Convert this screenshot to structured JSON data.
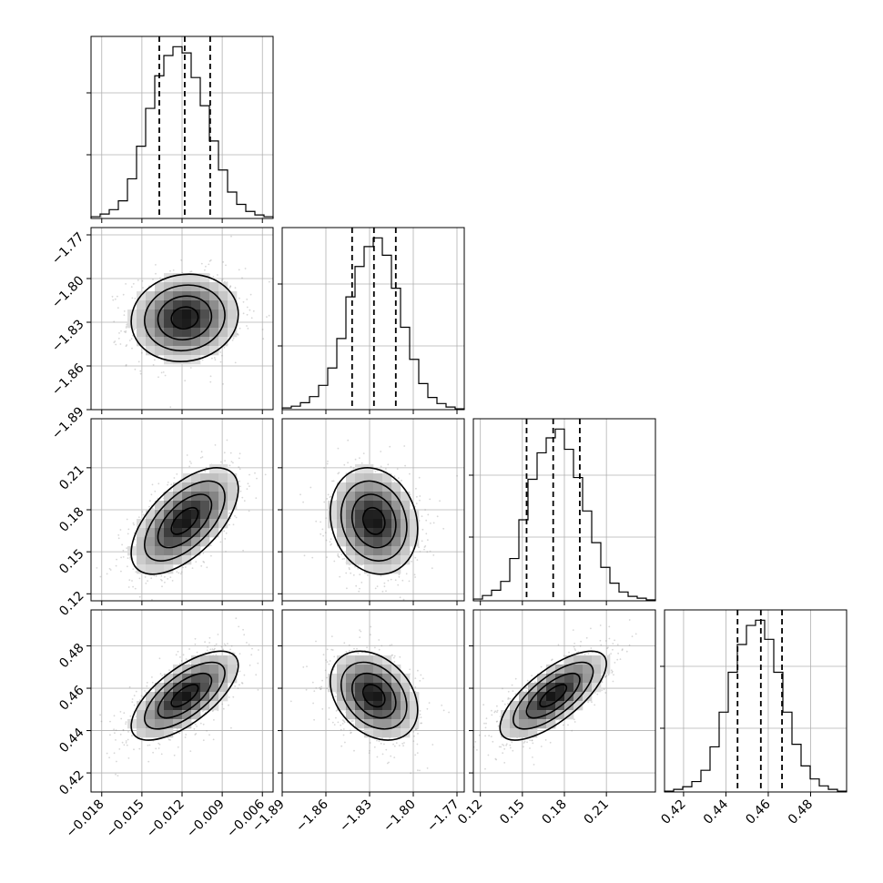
{
  "chart_data": {
    "type": "corner",
    "parameters": [
      {
        "range": [
          -0.0188,
          -0.0052
        ],
        "ticks": [
          -0.018,
          -0.015,
          -0.012,
          -0.009,
          -0.006
        ],
        "tick_labels": [
          "−0.018",
          "−0.015",
          "−0.012",
          "−0.009",
          "−0.006"
        ],
        "quantiles": [
          -0.0137,
          -0.0118,
          -0.0099
        ],
        "median": -0.0118,
        "sigma": 0.002
      },
      {
        "range": [
          -1.89,
          -1.765
        ],
        "ticks": [
          -1.89,
          -1.86,
          -1.83,
          -1.8,
          -1.77
        ],
        "tick_labels": [
          "−1.89",
          "−1.86",
          "−1.83",
          "−1.80",
          "−1.77"
        ],
        "quantiles": [
          -1.842,
          -1.827,
          -1.812
        ],
        "median": -1.827,
        "sigma": 0.015
      },
      {
        "range": [
          0.115,
          0.245
        ],
        "ticks": [
          0.12,
          0.15,
          0.18,
          0.21
        ],
        "tick_labels": [
          "0.12",
          "0.15",
          "0.18",
          "0.21"
        ],
        "quantiles": [
          0.153,
          0.172,
          0.191
        ],
        "median": 0.172,
        "sigma": 0.019
      },
      {
        "range": [
          0.411,
          0.497
        ],
        "ticks": [
          0.42,
          0.44,
          0.46,
          0.48
        ],
        "tick_labels": [
          "0.42",
          "0.44",
          "0.46",
          "0.48"
        ],
        "quantiles": [
          0.4455,
          0.4565,
          0.4665
        ],
        "median": 0.4565,
        "sigma": 0.0105
      }
    ],
    "histograms": [
      {
        "param": 0,
        "bin_edges": [
          -0.0188,
          -0.01812,
          -0.01744,
          -0.01676,
          -0.01608,
          -0.0154,
          -0.01472,
          -0.01404,
          -0.01336,
          -0.01268,
          -0.012,
          -0.01132,
          -0.01064,
          -0.00996,
          -0.00928,
          -0.0086,
          -0.00792,
          -0.00724,
          -0.00656,
          -0.00588,
          -0.0052
        ],
        "counts": [
          2,
          5,
          10,
          20,
          45,
          82,
          125,
          162,
          185,
          195,
          188,
          160,
          128,
          88,
          55,
          30,
          16,
          8,
          4,
          2
        ]
      },
      {
        "param": 1,
        "bin_edges": [
          -1.89,
          -1.88375,
          -1.8775,
          -1.87125,
          -1.865,
          -1.85875,
          -1.8525,
          -1.84625,
          -1.84,
          -1.83375,
          -1.8275,
          -1.82125,
          -1.815,
          -1.80875,
          -1.8025,
          -1.79625,
          -1.79,
          -1.78375,
          -1.7775,
          -1.77125,
          -1.765
        ],
        "counts": [
          2,
          4,
          8,
          15,
          28,
          48,
          82,
          130,
          165,
          188,
          198,
          178,
          140,
          95,
          58,
          30,
          14,
          7,
          3,
          1
        ]
      },
      {
        "param": 2,
        "bin_edges": [
          0.115,
          0.1215,
          0.128,
          0.1345,
          0.141,
          0.1475,
          0.154,
          0.1605,
          0.167,
          0.1735,
          0.18,
          0.1865,
          0.193,
          0.1995,
          0.206,
          0.2125,
          0.219,
          0.2255,
          0.232,
          0.2385,
          0.245
        ],
        "counts": [
          2,
          6,
          12,
          22,
          48,
          92,
          138,
          168,
          185,
          195,
          172,
          140,
          102,
          66,
          38,
          20,
          10,
          5,
          3,
          1
        ]
      },
      {
        "param": 3,
        "bin_edges": [
          0.411,
          0.4153,
          0.4196,
          0.4239,
          0.4282,
          0.4325,
          0.4368,
          0.4411,
          0.4454,
          0.4497,
          0.454,
          0.4583,
          0.4626,
          0.4669,
          0.4712,
          0.4755,
          0.4798,
          0.4841,
          0.4884,
          0.4927,
          0.497
        ],
        "counts": [
          1,
          3,
          6,
          12,
          25,
          52,
          92,
          138,
          170,
          192,
          198,
          176,
          138,
          92,
          55,
          30,
          15,
          7,
          3,
          1
        ]
      }
    ],
    "correlations": [
      {
        "x_param": 0,
        "y_param": 1,
        "rho": 0.08
      },
      {
        "x_param": 0,
        "y_param": 2,
        "rho": 0.6
      },
      {
        "x_param": 1,
        "y_param": 2,
        "rho": -0.15
      },
      {
        "x_param": 0,
        "y_param": 3,
        "rho": 0.68
      },
      {
        "x_param": 1,
        "y_param": 3,
        "rho": -0.32
      },
      {
        "x_param": 2,
        "y_param": 3,
        "rho": 0.72
      }
    ],
    "contour_levels_sigma": [
      0.5,
      1.0,
      1.5,
      2.0
    ],
    "grid": true,
    "style": {
      "line_color": "#000000",
      "grid_color": "#b0b0b0",
      "point_color": "#8c8c8c",
      "density_max_color": "#000000",
      "density_min_color": "#ffffff"
    }
  }
}
